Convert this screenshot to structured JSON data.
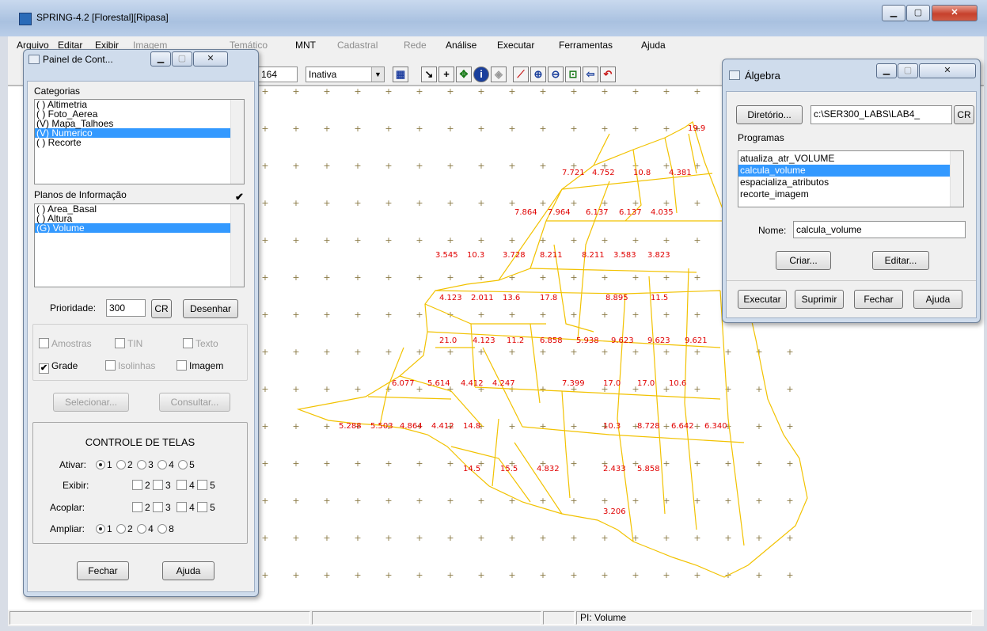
{
  "app": {
    "title": "SPRING-4.2 [Florestal][Ripasa]"
  },
  "menu": [
    "Arquivo",
    "Editar",
    "Exibir",
    "Imagem",
    "Temático",
    "MNT",
    "Cadastral",
    "Rede",
    "Análise",
    "Executar",
    "Ferramentas",
    "Ajuda"
  ],
  "toolbar": {
    "scale_value": "164",
    "mode_value": "Inativa"
  },
  "painel": {
    "title": "Painel de Cont...",
    "categorias_label": "Categorias",
    "categorias": [
      "( ) Altimetria",
      "( ) Foto_Aerea",
      "(V) Mapa_Talhoes",
      "(V) Numerico",
      "( ) Recorte"
    ],
    "categorias_selected": 3,
    "planos_label": "Planos de Informação",
    "planos": [
      "( ) Area_Basal",
      "( ) Altura",
      "(G) Volume"
    ],
    "planos_selected": 2,
    "planos_check": "✔",
    "prioridade_label": "Prioridade:",
    "prioridade_value": "300",
    "cr_label": "CR",
    "desenhar_label": "Desenhar",
    "amostras_label": "Amostras",
    "tin_label": "TIN",
    "texto_label": "Texto",
    "grade_label": "Grade",
    "grade_check": "✔",
    "isolinhas_label": "Isolinhas",
    "imagem_label": "Imagem",
    "selecionar_label": "Selecionar...",
    "consultar_label": "Consultar...",
    "controle_title": "CONTROLE DE TELAS",
    "ativar_label": "Ativar:",
    "exibir_label": "Exibir:",
    "acoplar_label": "Acoplar:",
    "ampliar_label": "Ampliar:",
    "telas": [
      "1",
      "2",
      "3",
      "4",
      "5"
    ],
    "telas_short": [
      "2",
      "3",
      "4",
      "5"
    ],
    "ampliar_opts": [
      "1",
      "2",
      "4",
      "8"
    ],
    "fechar_label": "Fechar",
    "ajuda_label": "Ajuda"
  },
  "algebra": {
    "title": "Álgebra",
    "diretorio_label": "Diretório...",
    "diretorio_value": "c:\\SER300_LABS\\LAB4_",
    "cr_label": "CR",
    "programas_label": "Programas",
    "programas": [
      "atualiza_atr_VOLUME",
      "calcula_volume",
      "espacializa_atributos",
      "recorte_imagem"
    ],
    "programas_selected": 1,
    "nome_label": "Nome:",
    "nome_value": "calcula_volume",
    "criar_label": "Criar...",
    "editar_label": "Editar...",
    "executar_label": "Executar",
    "suprimir_label": "Suprimir",
    "fechar_label": "Fechar",
    "ajuda_label": "Ajuda"
  },
  "status": {
    "pi_label": "PI: Volume"
  },
  "map": {
    "line_color": "#f2c200",
    "label_color": "#e00000",
    "grid_color": "#8a7a45",
    "values": [
      "19.9",
      "7.721",
      "4.752",
      "10.8",
      "4.381",
      "7.864",
      "7.964",
      "6.137",
      "6.137",
      "4.035",
      "3.545",
      "10.3",
      "3.728",
      "8.211",
      "8.211",
      "3.583",
      "3.823",
      "4.123",
      "2.011",
      "13.6",
      "17.8",
      "8.895",
      "11.5",
      "21.0",
      "4.123",
      "11.2",
      "6.858",
      "5.938",
      "9.623",
      "9.623",
      "9.621",
      "6.077",
      "5.614",
      "4.412",
      "4.247",
      "7.399",
      "17.0",
      "17.0",
      "10.6",
      "5.288",
      "5.503",
      "4.864",
      "4.412",
      "14.8",
      "10.3",
      "8.728",
      "6.642",
      "6.340",
      "14.5",
      "15.5",
      "4.832",
      "2.433",
      "5.858",
      "3.206"
    ]
  }
}
